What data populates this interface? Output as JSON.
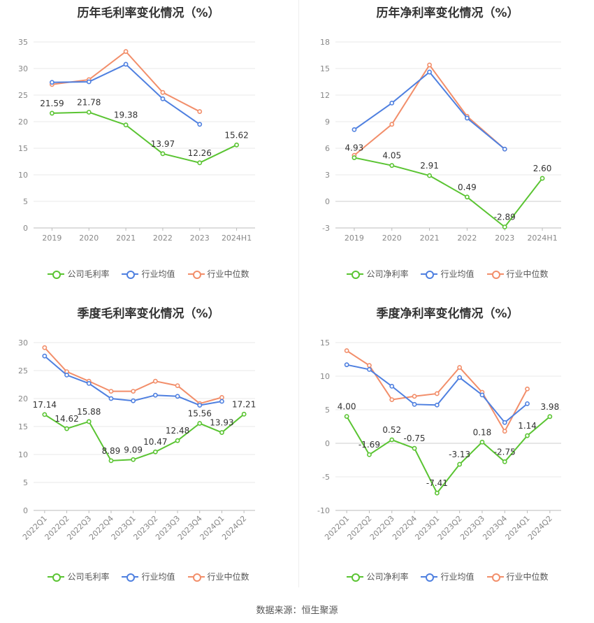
{
  "source_label": "数据来源：恒生聚源",
  "legend_labels": {
    "company_gross": "公司毛利率",
    "company_net": "公司净利率",
    "industry_avg": "行业均值",
    "industry_median": "行业中位数"
  },
  "colors": {
    "company": "#5ac432",
    "industry_avg": "#4f80e0",
    "industry_median": "#f28e6a",
    "grid": "#e8e8e8",
    "axis_text": "#888888"
  },
  "chart_data": [
    {
      "type": "line",
      "title": "历年毛利率变化情况（%）",
      "categories": [
        "2019",
        "2020",
        "2021",
        "2022",
        "2023",
        "2024H1"
      ],
      "ylim": [
        0,
        35
      ],
      "yticks": [
        0,
        5,
        10,
        15,
        20,
        25,
        30,
        35
      ],
      "series": [
        {
          "name": "公司毛利率",
          "values": [
            21.59,
            21.78,
            19.38,
            13.97,
            12.26,
            15.62
          ],
          "labels": [
            "21.59",
            "21.78",
            "19.38",
            "13.97",
            "12.26",
            "15.62"
          ]
        },
        {
          "name": "行业均值",
          "values": [
            27.4,
            27.5,
            30.8,
            24.3,
            19.5,
            null
          ]
        },
        {
          "name": "行业中位数",
          "values": [
            27.0,
            27.9,
            33.2,
            25.5,
            21.9,
            null
          ]
        }
      ]
    },
    {
      "type": "line",
      "title": "历年净利率变化情况（%）",
      "categories": [
        "2019",
        "2020",
        "2021",
        "2022",
        "2023",
        "2024H1"
      ],
      "ylim": [
        -3,
        18
      ],
      "yticks": [
        -3,
        0,
        3,
        6,
        9,
        12,
        15,
        18
      ],
      "series": [
        {
          "name": "公司净利率",
          "values": [
            4.93,
            4.05,
            2.91,
            0.49,
            -2.89,
            2.6
          ],
          "labels": [
            "4.93",
            "4.05",
            "2.91",
            "0.49",
            "-2.89",
            "2.60"
          ]
        },
        {
          "name": "行业均值",
          "values": [
            8.1,
            11.1,
            14.6,
            9.4,
            5.9,
            null
          ]
        },
        {
          "name": "行业中位数",
          "values": [
            5.2,
            8.7,
            15.4,
            9.6,
            5.9,
            null
          ]
        }
      ]
    },
    {
      "type": "line",
      "title": "季度毛利率变化情况（%）",
      "categories": [
        "2022Q1",
        "2022Q2",
        "2022Q3",
        "2022Q4",
        "2023Q1",
        "2023Q2",
        "2023Q3",
        "2023Q4",
        "2024Q1",
        "2024Q2"
      ],
      "ylim": [
        0,
        30
      ],
      "yticks": [
        0,
        5,
        10,
        15,
        20,
        25,
        30
      ],
      "series": [
        {
          "name": "公司毛利率",
          "values": [
            17.14,
            14.62,
            15.88,
            8.89,
            9.09,
            10.47,
            12.48,
            15.56,
            13.93,
            17.21
          ],
          "labels": [
            "17.14",
            "14.62",
            "15.88",
            "8.89",
            "9.09",
            "10.47",
            "12.48",
            "15.56",
            "13.93",
            "17.21"
          ]
        },
        {
          "name": "行业均值",
          "values": [
            27.6,
            24.2,
            22.7,
            20.0,
            19.6,
            20.6,
            20.4,
            18.8,
            19.5,
            null
          ]
        },
        {
          "name": "行业中位数",
          "values": [
            29.1,
            24.8,
            23.1,
            21.3,
            21.3,
            23.1,
            22.3,
            19.1,
            20.2,
            null
          ]
        }
      ]
    },
    {
      "type": "line",
      "title": "季度净利率变化情况（%）",
      "categories": [
        "2022Q1",
        "2022Q2",
        "2022Q3",
        "2022Q4",
        "2023Q1",
        "2023Q2",
        "2023Q3",
        "2023Q4",
        "2024Q1",
        "2024Q2"
      ],
      "ylim": [
        -10,
        15
      ],
      "yticks": [
        -10,
        -5,
        0,
        5,
        10,
        15
      ],
      "series": [
        {
          "name": "公司净利率",
          "values": [
            4.0,
            -1.69,
            0.52,
            -0.75,
            -7.41,
            -3.13,
            0.18,
            -2.75,
            1.14,
            3.98
          ],
          "labels": [
            "4.00",
            "-1.69",
            "0.52",
            "-0.75",
            "-7.41",
            "-3.13",
            "0.18",
            "-2.75",
            "1.14",
            "3.98"
          ]
        },
        {
          "name": "行业均值",
          "values": [
            11.7,
            11.0,
            8.5,
            5.8,
            5.7,
            9.8,
            7.2,
            3.1,
            5.9,
            null
          ]
        },
        {
          "name": "行业中位数",
          "values": [
            13.8,
            11.6,
            6.5,
            7.0,
            7.4,
            11.3,
            7.6,
            1.8,
            8.1,
            null
          ]
        }
      ]
    }
  ]
}
